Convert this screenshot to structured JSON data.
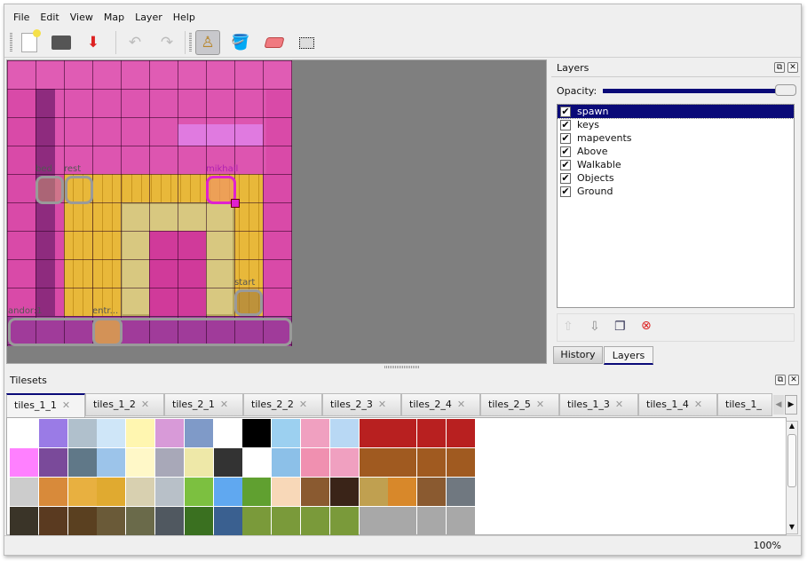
{
  "menu": [
    "File",
    "Edit",
    "View",
    "Map",
    "Layer",
    "Help"
  ],
  "toolbar": {
    "icons": [
      "new-file-icon",
      "open-icon",
      "save-icon",
      "undo-icon",
      "redo-icon",
      "stamp-brush-icon",
      "bucket-fill-icon",
      "eraser-icon",
      "rect-select-icon"
    ],
    "active": "stamp-brush-icon"
  },
  "map": {
    "objects": [
      "bed",
      "rest",
      "mikhail",
      "start",
      "andor:1",
      "entr..."
    ],
    "selected_object": "mikhail"
  },
  "layers_panel": {
    "title": "Layers",
    "opacity_label": "Opacity:",
    "opacity": 1.0,
    "layers": [
      {
        "name": "spawn",
        "visible": true,
        "selected": true
      },
      {
        "name": "keys",
        "visible": true
      },
      {
        "name": "mapevents",
        "visible": true
      },
      {
        "name": "Above",
        "visible": true
      },
      {
        "name": "Walkable",
        "visible": true
      },
      {
        "name": "Objects",
        "visible": true
      },
      {
        "name": "Ground",
        "visible": true
      }
    ],
    "tabs": [
      "History",
      "Layers"
    ],
    "active_tab": "Layers"
  },
  "tilesets": {
    "title": "Tilesets",
    "tabs": [
      "tiles_1_1",
      "tiles_1_2",
      "tiles_2_1",
      "tiles_2_2",
      "tiles_2_3",
      "tiles_2_4",
      "tiles_2_5",
      "tiles_1_3",
      "tiles_1_4",
      "tiles_1_"
    ],
    "active_tab": "tiles_1_1"
  },
  "status": {
    "zoom": "100%"
  },
  "colors": {
    "selection": "#0a0a78",
    "canvas_bg": "#7f7f7f",
    "map_pink": "#d94aa8",
    "floor": "#e8b83a"
  }
}
